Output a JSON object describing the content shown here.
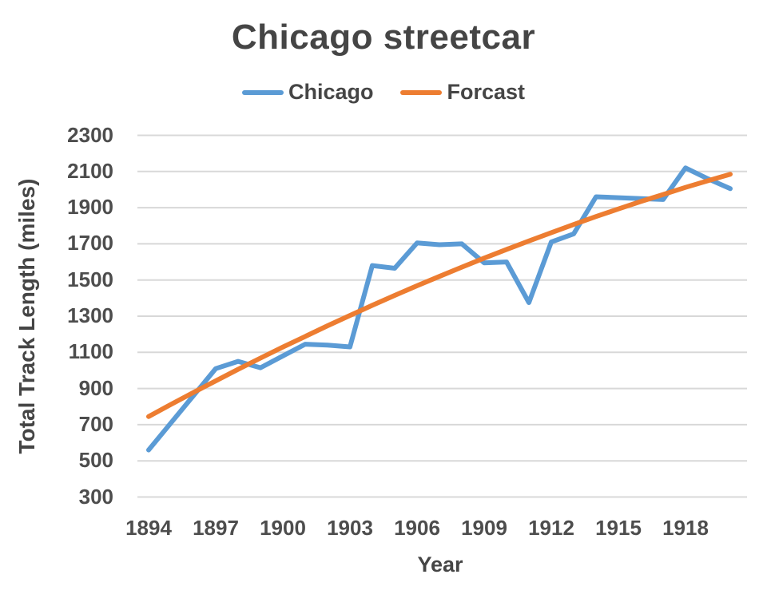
{
  "title": "Chicago streetcar",
  "legend": [
    {
      "label": "Chicago",
      "color": "#5B9BD5"
    },
    {
      "label": "Forcast",
      "color": "#ED7D31"
    }
  ],
  "y_axis": {
    "title": "Total Track Length (miles)",
    "ticks": [
      2300,
      2100,
      1900,
      1700,
      1500,
      1300,
      1100,
      900,
      700,
      500,
      300
    ],
    "min": 300,
    "max": 2300
  },
  "x_axis": {
    "title": "Year",
    "ticks": [
      1894,
      1897,
      1900,
      1903,
      1906,
      1909,
      1912,
      1915,
      1918
    ],
    "min": 1894,
    "max": 1920
  },
  "chart_data": {
    "type": "line",
    "title": "Chicago streetcar",
    "xlabel": "Year",
    "ylabel": "Total Track Length (miles)",
    "ylim": [
      300,
      2300
    ],
    "xlim": [
      1894,
      1920
    ],
    "grid": "horizontal",
    "legend_position": "top",
    "x": [
      1894,
      1895,
      1896,
      1897,
      1898,
      1899,
      1900,
      1901,
      1902,
      1903,
      1904,
      1905,
      1906,
      1907,
      1908,
      1909,
      1910,
      1911,
      1912,
      1913,
      1914,
      1915,
      1916,
      1917,
      1918,
      1919,
      1920
    ],
    "series": [
      {
        "name": "Chicago",
        "color": "#5B9BD5",
        "values": [
          560,
          710,
          860,
          1010,
          1050,
          1015,
          1080,
          1145,
          1140,
          1130,
          1580,
          1565,
          1705,
          1695,
          1700,
          1595,
          1600,
          1375,
          1710,
          1755,
          1960,
          1955,
          1950,
          1945,
          2120,
          2060,
          2005
        ]
      },
      {
        "name": "Forcast",
        "color": "#ED7D31",
        "values": [
          745,
          812,
          878,
          942,
          1006,
          1068,
          1129,
          1188,
          1247,
          1304,
          1360,
          1415,
          1468,
          1520,
          1571,
          1621,
          1669,
          1716,
          1762,
          1807,
          1851,
          1893,
          1934,
          1973,
          2012,
          2049,
          2085
        ]
      }
    ]
  }
}
